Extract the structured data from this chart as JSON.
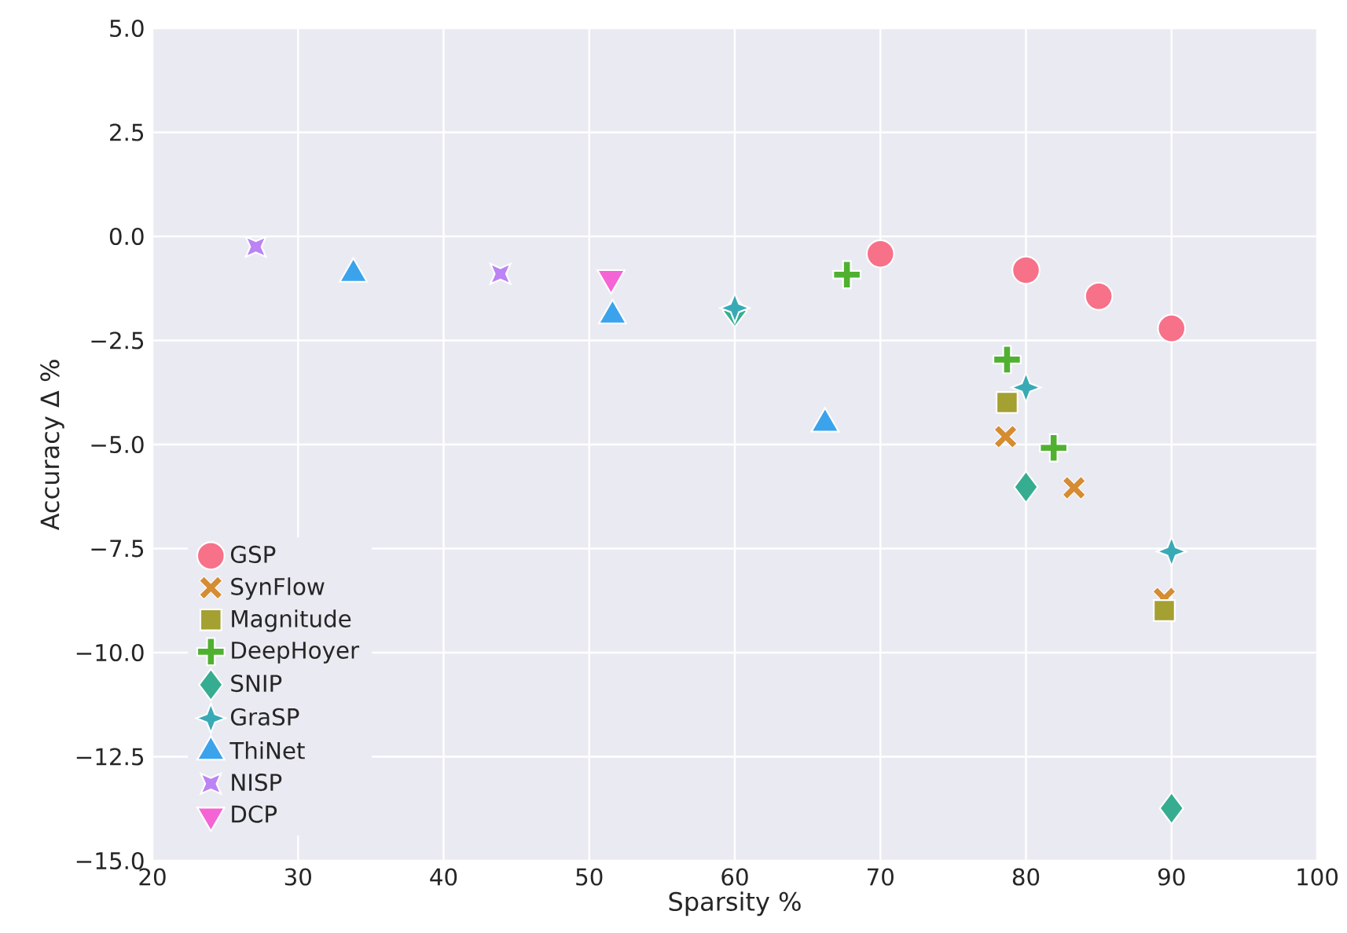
{
  "chart_data": {
    "type": "scatter",
    "xlabel": "Sparsity %",
    "ylabel": "Accuracy Δ %",
    "xlim": [
      20,
      100
    ],
    "xticks": [
      20,
      30,
      40,
      50,
      60,
      70,
      80,
      90,
      100
    ],
    "ylim": [
      -15,
      5
    ],
    "yticks": [
      {
        "value": 5,
        "label": "5.0"
      },
      {
        "value": 2.5,
        "label": "2.5"
      },
      {
        "value": 0,
        "label": "0.0"
      },
      {
        "value": -2.5,
        "label": "−2.5"
      },
      {
        "value": -5,
        "label": "−5.0"
      },
      {
        "value": -7.5,
        "label": "−7.5"
      },
      {
        "value": -10,
        "label": "−10.0"
      },
      {
        "value": -12.5,
        "label": "−12.5"
      },
      {
        "value": -15,
        "label": "−15.0"
      }
    ],
    "grid": true,
    "legend": "bottom left",
    "series": [
      {
        "name": "GSP",
        "color": "#f77189",
        "marker": "circle",
        "x": [
          70,
          80,
          85,
          90
        ],
        "values": [
          -0.42,
          -0.81,
          -1.44,
          -2.21
        ]
      },
      {
        "name": "SynFlow",
        "color": "#d58c32",
        "marker": "cross",
        "x": [
          78.6,
          83.3,
          89.5
        ],
        "values": [
          -4.81,
          -6.04,
          -8.7
        ]
      },
      {
        "name": "Magnitude",
        "color": "#a4a031",
        "marker": "square",
        "x": [
          78.7,
          89.5
        ],
        "values": [
          -3.99,
          -8.99
        ]
      },
      {
        "name": "DeepHoyer",
        "color": "#50b131",
        "marker": "plus",
        "x": [
          67.7,
          78.7,
          81.9
        ],
        "values": [
          -0.92,
          -2.96,
          -5.08
        ]
      },
      {
        "name": "SNIP",
        "color": "#36ad90",
        "marker": "diamond",
        "x": [
          60,
          80,
          90
        ],
        "values": [
          -1.8,
          -6.02,
          -13.74
        ]
      },
      {
        "name": "GraSP",
        "color": "#38aab5",
        "marker": "star",
        "x": [
          60,
          80,
          90
        ],
        "values": [
          -1.72,
          -3.63,
          -7.57
        ]
      },
      {
        "name": "ThiNet",
        "color": "#3ba3ec",
        "marker": "triangle",
        "x": [
          33.8,
          51.6,
          66.2
        ],
        "values": [
          -0.9,
          -1.9,
          -4.5
        ]
      },
      {
        "name": "NISP",
        "color": "#bb83f4",
        "marker": "star-pinched",
        "x": [
          27.1,
          43.9
        ],
        "values": [
          -0.25,
          -0.9
        ]
      },
      {
        "name": "DCP",
        "color": "#f564d4",
        "marker": "triangle-down",
        "x": [
          51.5
        ],
        "values": [
          -1.0
        ]
      }
    ]
  }
}
